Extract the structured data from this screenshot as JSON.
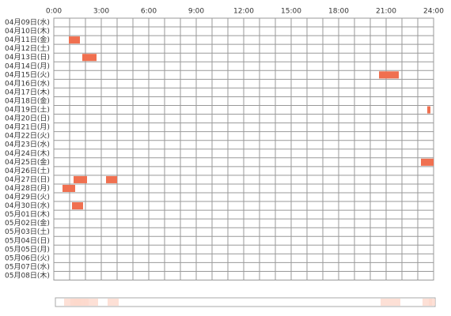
{
  "chart_data": {
    "type": "timeline",
    "categories": [
      "04月09日(水)",
      "04月10日(木)",
      "04月11日(金)",
      "04月12日(土)",
      "04月13日(日)",
      "04月14日(月)",
      "04月15日(火)",
      "04月16日(水)",
      "04月17日(木)",
      "04月18日(金)",
      "04月19日(土)",
      "04月20日(日)",
      "04月21日(月)",
      "04月22日(火)",
      "04月23日(水)",
      "04月24日(木)",
      "04月25日(金)",
      "04月26日(土)",
      "04月27日(日)",
      "04月28日(月)",
      "04月29日(火)",
      "04月30日(水)",
      "05月01日(木)",
      "05月02日(金)",
      "05月03日(土)",
      "05月04日(日)",
      "05月05日(月)",
      "05月06日(火)",
      "05月07日(水)",
      "05月08日(木)"
    ],
    "values": [
      [],
      [],
      [
        [
          0.95,
          1.65
        ]
      ],
      [],
      [
        [
          1.8,
          2.7
        ]
      ],
      [],
      [
        [
          20.55,
          21.8
        ]
      ],
      [],
      [],
      [],
      [
        [
          23.6,
          23.8
        ]
      ],
      [],
      [],
      [],
      [],
      [],
      [
        [
          23.2,
          24
        ]
      ],
      [],
      [
        [
          1.25,
          2.1
        ],
        [
          3.3,
          4.0
        ]
      ],
      [
        [
          0.55,
          1.35
        ]
      ],
      [],
      [
        [
          1.15,
          1.85
        ]
      ],
      [],
      [],
      [],
      [],
      [],
      [],
      [],
      []
    ],
    "color": "#f07050",
    "strip_color": "#fcd8cc",
    "xlim": [
      0,
      24
    ],
    "xticks": [
      {
        "value": 0,
        "label": "0:00"
      },
      {
        "value": 3,
        "label": "3:00"
      },
      {
        "value": 6,
        "label": "6:00"
      },
      {
        "value": 9,
        "label": "9:00"
      },
      {
        "value": 12,
        "label": "12:00"
      },
      {
        "value": 15,
        "label": "15:00"
      },
      {
        "value": 18,
        "label": "18:00"
      },
      {
        "value": 21,
        "label": "21:00"
      },
      {
        "value": 24,
        "label": "24:00"
      }
    ],
    "grid_step": 1
  }
}
